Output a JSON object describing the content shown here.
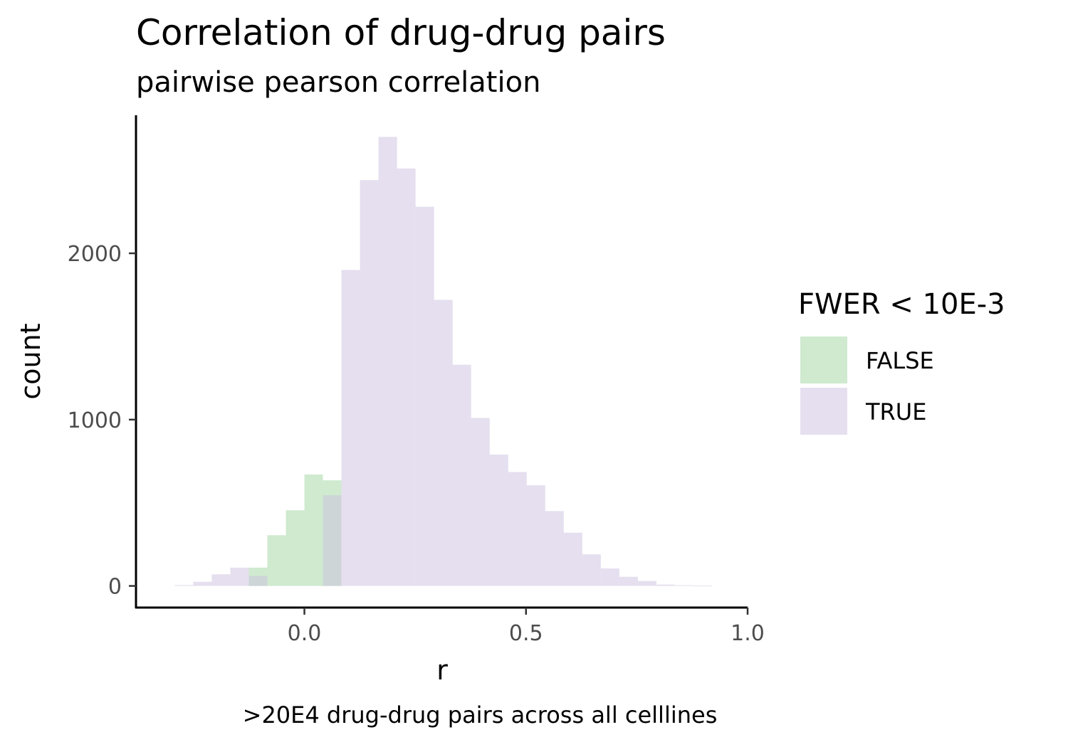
{
  "chart_data": {
    "type": "bar",
    "title": "Correlation of drug-drug pairs",
    "subtitle": "pairwise pearson correlation",
    "xlabel": "r",
    "ylabel": "count",
    "caption": ">20E4 drug-drug pairs across all celllines",
    "xlim": [
      -0.38,
      1.0
    ],
    "ylim": [
      -130,
      2830
    ],
    "x_ticks": [
      {
        "value": 0.0,
        "label": "0.0"
      },
      {
        "value": 0.5,
        "label": "0.5"
      },
      {
        "value": 1.0,
        "label": "1.0"
      }
    ],
    "y_ticks": [
      {
        "value": 0,
        "label": "0"
      },
      {
        "value": 1000,
        "label": "1000"
      },
      {
        "value": 2000,
        "label": "2000"
      }
    ],
    "bin_width": 0.0418,
    "grid": false,
    "legend": {
      "title": "FWER < 10E-3",
      "placement": "right",
      "entries": [
        {
          "label": "FALSE",
          "color": "#a8d8a8"
        },
        {
          "label": "TRUE",
          "color": "#cbbfdf"
        }
      ]
    },
    "series": [
      {
        "name": "FALSE",
        "color": "#a8d8a8",
        "opacity": 0.55,
        "bins": [
          {
            "x": -0.1045,
            "count": 110
          },
          {
            "x": -0.0627,
            "count": 305
          },
          {
            "x": -0.0209,
            "count": 455
          },
          {
            "x": 0.0209,
            "count": 670
          },
          {
            "x": 0.0627,
            "count": 635
          }
        ]
      },
      {
        "name": "TRUE",
        "color": "#cbbfdf",
        "opacity": 0.5,
        "bins": [
          {
            "x": -0.2717,
            "count": 5
          },
          {
            "x": -0.2299,
            "count": 25
          },
          {
            "x": -0.1881,
            "count": 70
          },
          {
            "x": -0.1463,
            "count": 110
          },
          {
            "x": -0.1045,
            "count": 60
          },
          {
            "x": -0.0627,
            "count": 0
          },
          {
            "x": -0.0209,
            "count": 0
          },
          {
            "x": 0.0209,
            "count": 0
          },
          {
            "x": 0.0627,
            "count": 545
          },
          {
            "x": 0.1045,
            "count": 1900
          },
          {
            "x": 0.1463,
            "count": 2440
          },
          {
            "x": 0.1881,
            "count": 2700
          },
          {
            "x": 0.2299,
            "count": 2510
          },
          {
            "x": 0.2717,
            "count": 2280
          },
          {
            "x": 0.3135,
            "count": 1720
          },
          {
            "x": 0.3553,
            "count": 1330
          },
          {
            "x": 0.3971,
            "count": 1010
          },
          {
            "x": 0.4389,
            "count": 790
          },
          {
            "x": 0.4807,
            "count": 685
          },
          {
            "x": 0.5225,
            "count": 605
          },
          {
            "x": 0.5643,
            "count": 450
          },
          {
            "x": 0.6061,
            "count": 320
          },
          {
            "x": 0.6479,
            "count": 190
          },
          {
            "x": 0.6897,
            "count": 105
          },
          {
            "x": 0.7315,
            "count": 55
          },
          {
            "x": 0.7733,
            "count": 30
          },
          {
            "x": 0.8151,
            "count": 8
          },
          {
            "x": 0.8569,
            "count": 4
          },
          {
            "x": 0.8987,
            "count": 2
          }
        ]
      }
    ]
  }
}
